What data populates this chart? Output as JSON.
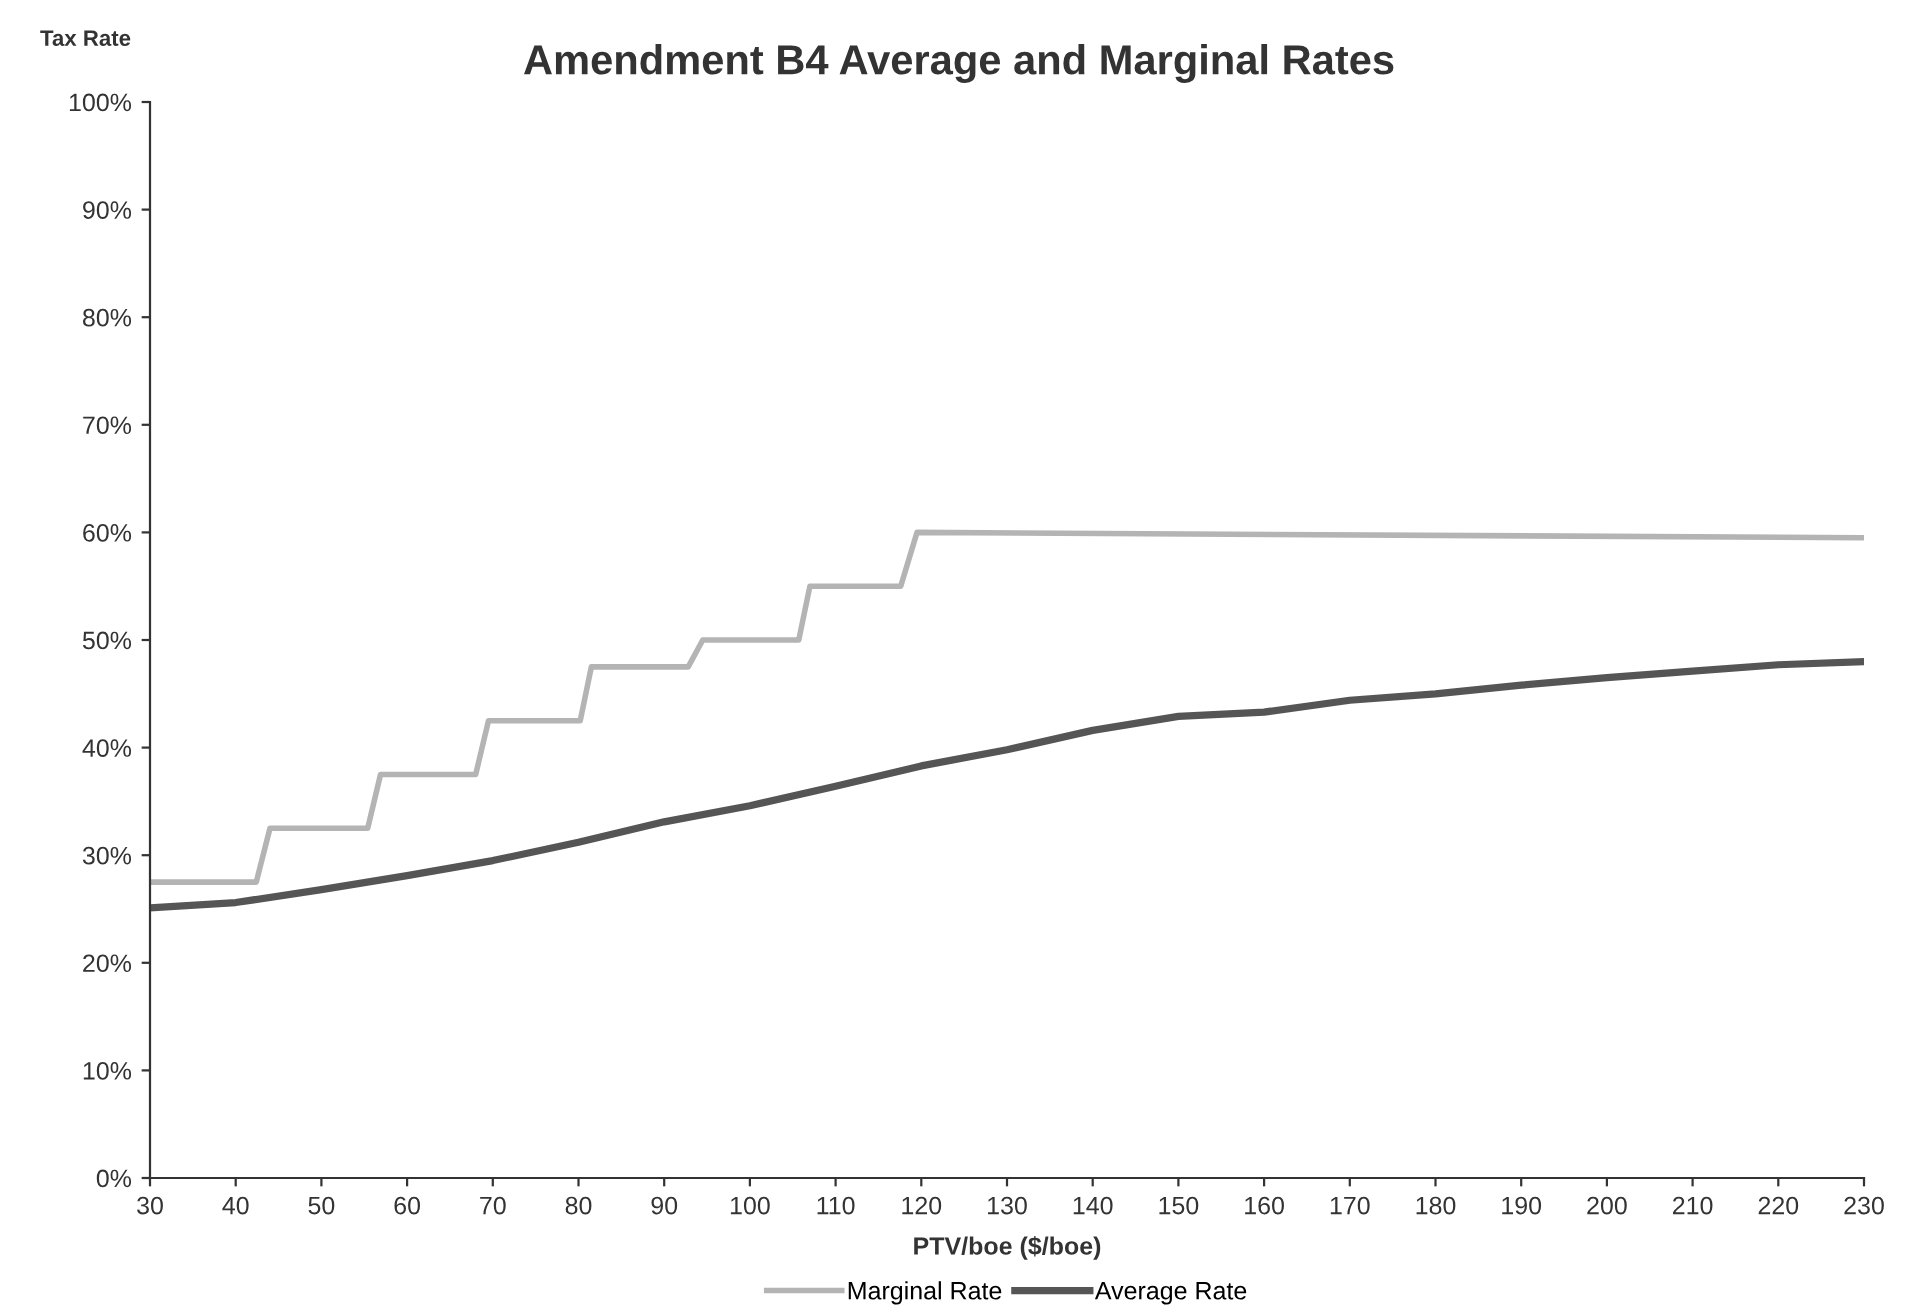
{
  "chart_data": {
    "type": "line",
    "title": "Amendment B4 Average and Marginal Rates",
    "xlabel": "PTV/boe ($/boe)",
    "ylabel": "Tax Rate",
    "series": [
      {
        "name": "Marginal Rate",
        "color": "#b4b4b4",
        "x": [
          30,
          42.4,
          44,
          55.4,
          56.9,
          68,
          69.5,
          80.2,
          81.5,
          92.8,
          94.5,
          105.7,
          107,
          117.6,
          119.5,
          230
        ],
        "values": [
          27.5,
          27.5,
          32.5,
          32.5,
          37.5,
          37.5,
          42.5,
          42.5,
          47.5,
          47.5,
          50,
          50,
          55,
          55,
          60,
          59.5
        ]
      },
      {
        "name": "Average Rate",
        "color": "#555555",
        "x": [
          30,
          40,
          50,
          60,
          70,
          80,
          90,
          100,
          110,
          120,
          130,
          140,
          150,
          160,
          170,
          180,
          190,
          200,
          210,
          220,
          230
        ],
        "values": [
          25.1,
          25.6,
          26.8,
          28.1,
          29.5,
          31.2,
          33.1,
          34.6,
          36.4,
          38.3,
          39.8,
          41.6,
          42.9,
          43.3,
          44.4,
          45.0,
          45.8,
          46.5,
          47.1,
          47.7,
          48.0
        ]
      }
    ],
    "xlim": [
      30,
      230
    ],
    "xticks": [
      30,
      40,
      50,
      60,
      70,
      80,
      90,
      100,
      110,
      120,
      130,
      140,
      150,
      160,
      170,
      180,
      190,
      200,
      210,
      220,
      230
    ],
    "ylim": [
      0,
      100
    ],
    "yticks": [
      {
        "value": 0,
        "label": "0%"
      },
      {
        "value": 10,
        "label": "10%"
      },
      {
        "value": 20,
        "label": "20%"
      },
      {
        "value": 30,
        "label": "30%"
      },
      {
        "value": 40,
        "label": "40%"
      },
      {
        "value": 50,
        "label": "50%"
      },
      {
        "value": 60,
        "label": "60%"
      },
      {
        "value": 70,
        "label": "70%"
      },
      {
        "value": 80,
        "label": "80%"
      },
      {
        "value": 90,
        "label": "90%"
      },
      {
        "value": 100,
        "label": "100%"
      }
    ],
    "grid": false,
    "legend": "bottom",
    "marker": "none",
    "line_style": "solid"
  }
}
